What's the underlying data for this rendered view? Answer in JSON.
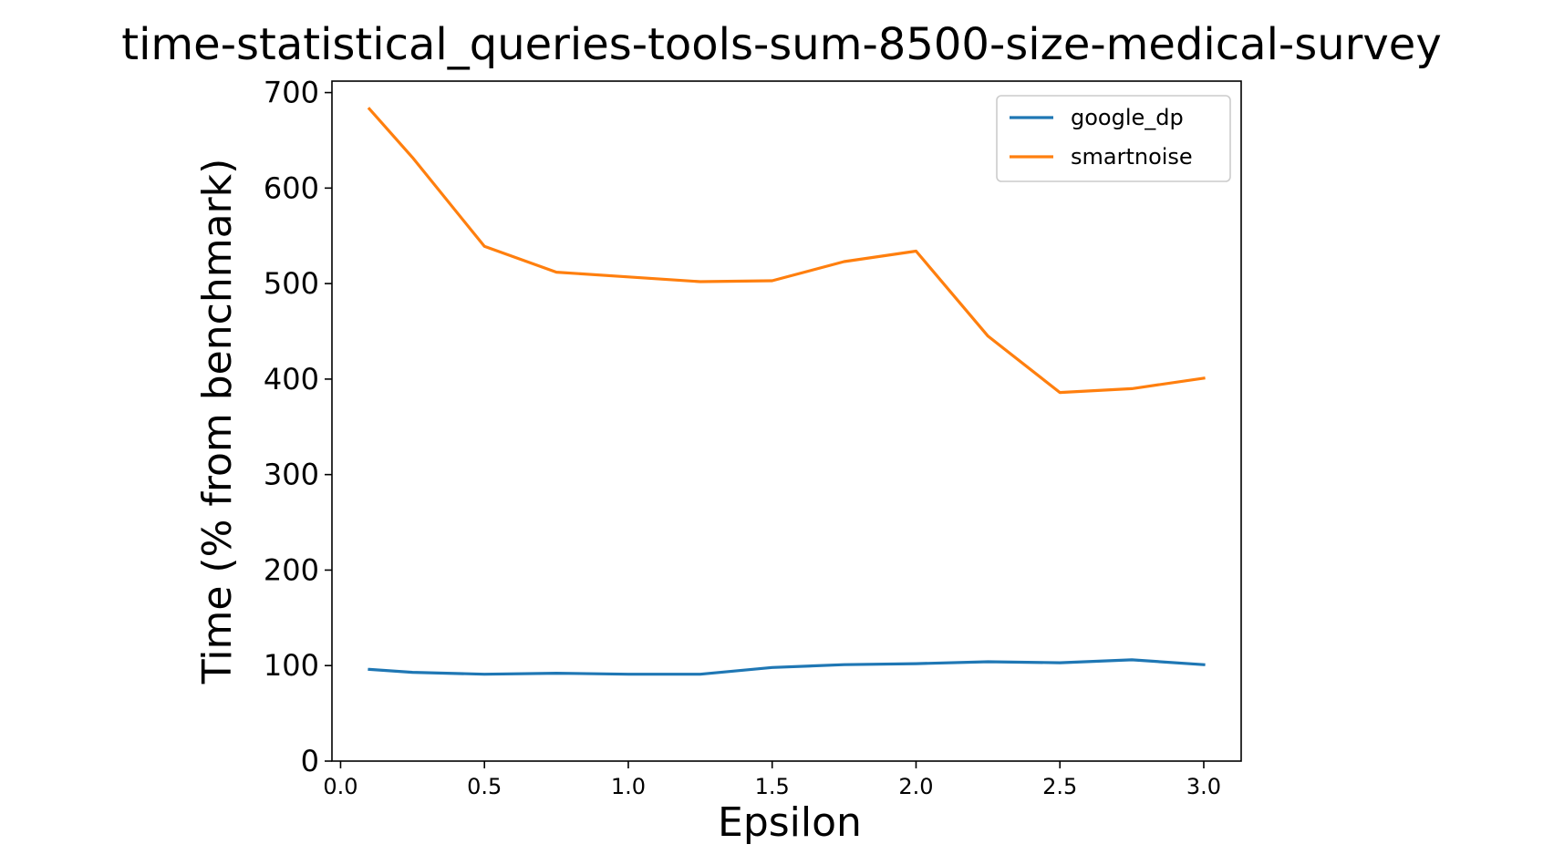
{
  "chart_data": {
    "type": "line",
    "title": "time-statistical_queries-tools-sum-8500-size-medical-survey",
    "xlabel": "Epsilon",
    "ylabel": "Time (% from benchmark)",
    "xlim": [
      -0.03,
      3.13
    ],
    "ylim": [
      0,
      712
    ],
    "xticks": [
      0.0,
      0.5,
      1.0,
      1.5,
      2.0,
      2.5,
      3.0
    ],
    "xtick_labels": [
      "0.0",
      "0.5",
      "1.0",
      "1.5",
      "2.0",
      "2.5",
      "3.0"
    ],
    "yticks": [
      0,
      100,
      200,
      300,
      400,
      500,
      600,
      700
    ],
    "ytick_labels": [
      "0",
      "100",
      "200",
      "300",
      "400",
      "500",
      "600",
      "700"
    ],
    "grid": false,
    "legend_position": "top-right",
    "x": [
      0.1,
      0.25,
      0.5,
      0.75,
      1.0,
      1.25,
      1.5,
      1.75,
      2.0,
      2.25,
      2.5,
      2.75,
      3.0
    ],
    "series": [
      {
        "name": "google_dp",
        "color": "#1f77b4",
        "values": [
          96,
          93,
          91,
          92,
          91,
          91,
          98,
          101,
          102,
          104,
          103,
          106,
          101
        ]
      },
      {
        "name": "smartnoise",
        "color": "#ff7f0e",
        "values": [
          683,
          632,
          539,
          512,
          507,
          502,
          503,
          523,
          534,
          445,
          386,
          390,
          401
        ]
      }
    ]
  }
}
